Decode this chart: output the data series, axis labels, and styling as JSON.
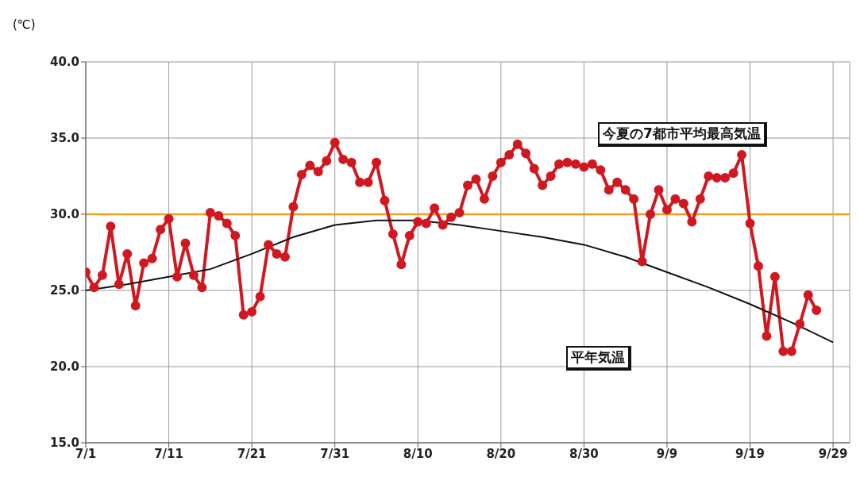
{
  "chart_data": {
    "type": "line",
    "ylabel": "(℃)",
    "x": [
      "--07-01",
      "--07-02",
      "--07-03",
      "--07-04",
      "--07-05",
      "--07-06",
      "--07-07",
      "--07-08",
      "--07-09",
      "--07-10",
      "--07-11",
      "--07-12",
      "--07-13",
      "--07-14",
      "--07-15",
      "--07-16",
      "--07-17",
      "--07-18",
      "--07-19",
      "--07-20",
      "--07-21",
      "--07-22",
      "--07-23",
      "--07-24",
      "--07-25",
      "--07-26",
      "--07-27",
      "--07-28",
      "--07-29",
      "--07-30",
      "--07-31",
      "--08-01",
      "--08-02",
      "--08-03",
      "--08-04",
      "--08-05",
      "--08-06",
      "--08-07",
      "--08-08",
      "--08-09",
      "--08-10",
      "--08-11",
      "--08-12",
      "--08-13",
      "--08-14",
      "--08-15",
      "--08-16",
      "--08-17",
      "--08-18",
      "--08-19",
      "--08-20",
      "--08-21",
      "--08-22",
      "--08-23",
      "--08-24",
      "--08-25",
      "--08-26",
      "--08-27",
      "--08-28",
      "--08-29",
      "--08-30",
      "--08-31",
      "--09-01",
      "--09-02",
      "--09-03",
      "--09-04",
      "--09-05",
      "--09-06",
      "--09-07",
      "--09-08",
      "--09-09",
      "--09-10",
      "--09-11",
      "--09-12",
      "--09-13",
      "--09-14",
      "--09-15",
      "--09-16",
      "--09-17",
      "--09-18",
      "--09-19",
      "--09-20",
      "--09-21",
      "--09-22",
      "--09-23",
      "--09-24",
      "--09-25",
      "--09-26",
      "--09-27"
    ],
    "series": [
      {
        "name": "今夏の7都市平均最高気温",
        "color": "#d01820",
        "marker": "circle",
        "values": [
          26.2,
          25.2,
          26.0,
          29.2,
          25.4,
          27.4,
          24.0,
          26.8,
          27.1,
          29.0,
          29.7,
          25.9,
          28.1,
          26.0,
          25.2,
          30.1,
          29.9,
          29.4,
          28.6,
          23.4,
          23.6,
          24.6,
          28.0,
          27.4,
          27.2,
          30.5,
          32.6,
          33.2,
          32.8,
          33.5,
          34.7,
          33.6,
          33.4,
          32.1,
          32.1,
          33.4,
          30.9,
          28.7,
          26.7,
          28.6,
          29.5,
          29.4,
          30.4,
          29.3,
          29.8,
          30.1,
          31.9,
          32.3,
          31.0,
          32.5,
          33.4,
          33.9,
          34.6,
          34.0,
          33.0,
          31.9,
          32.5,
          33.3,
          33.4,
          33.3,
          33.1,
          33.3,
          32.9,
          31.6,
          32.1,
          31.6,
          31.0,
          26.9,
          30.0,
          31.6,
          30.3,
          31.0,
          30.7,
          29.5,
          31.0,
          32.5,
          32.4,
          32.4,
          32.7,
          33.9,
          29.4,
          26.6,
          22.0,
          25.9,
          21.0,
          21.0,
          22.8,
          24.7,
          23.7
        ]
      },
      {
        "name": "平年気温",
        "color": "#111111",
        "marker": "none",
        "x": [
          "--07-01",
          "--07-06",
          "--07-11",
          "--07-16",
          "--07-21",
          "--07-26",
          "--07-31",
          "--08-05",
          "--08-10",
          "--08-15",
          "--08-20",
          "--08-25",
          "--08-30",
          "--09-04",
          "--09-09",
          "--09-14",
          "--09-19",
          "--09-24",
          "--09-29"
        ],
        "values": [
          25.0,
          25.4,
          25.9,
          26.4,
          27.4,
          28.5,
          29.3,
          29.6,
          29.6,
          29.3,
          28.9,
          28.5,
          28.0,
          27.2,
          26.2,
          25.2,
          24.1,
          22.9,
          21.6
        ]
      }
    ],
    "ref_lines": [
      {
        "axis": "y",
        "value": 30,
        "color": "#f0a020"
      }
    ],
    "xlim": [
      "--07-01",
      "--10-01"
    ],
    "xticks": [
      {
        "value": "--07-01",
        "label": "7/1"
      },
      {
        "value": "--07-11",
        "label": "7/11"
      },
      {
        "value": "--07-21",
        "label": "7/21"
      },
      {
        "value": "--07-31",
        "label": "7/31"
      },
      {
        "value": "--08-10",
        "label": "8/10"
      },
      {
        "value": "--08-20",
        "label": "8/20"
      },
      {
        "value": "--08-30",
        "label": "8/30"
      },
      {
        "value": "--09-09",
        "label": "9/9"
      },
      {
        "value": "--09-19",
        "label": "9/19"
      },
      {
        "value": "--09-29",
        "label": "9/29"
      }
    ],
    "ylim": [
      15,
      40
    ],
    "yticks": [
      {
        "value": 15,
        "label": "15.0"
      },
      {
        "value": 20,
        "label": "20.0"
      },
      {
        "value": 25,
        "label": "25.0"
      },
      {
        "value": 30,
        "label": "30.0"
      },
      {
        "value": 35,
        "label": "35.0"
      },
      {
        "value": 40,
        "label": "40.0"
      }
    ],
    "grid": true,
    "legend": false
  }
}
